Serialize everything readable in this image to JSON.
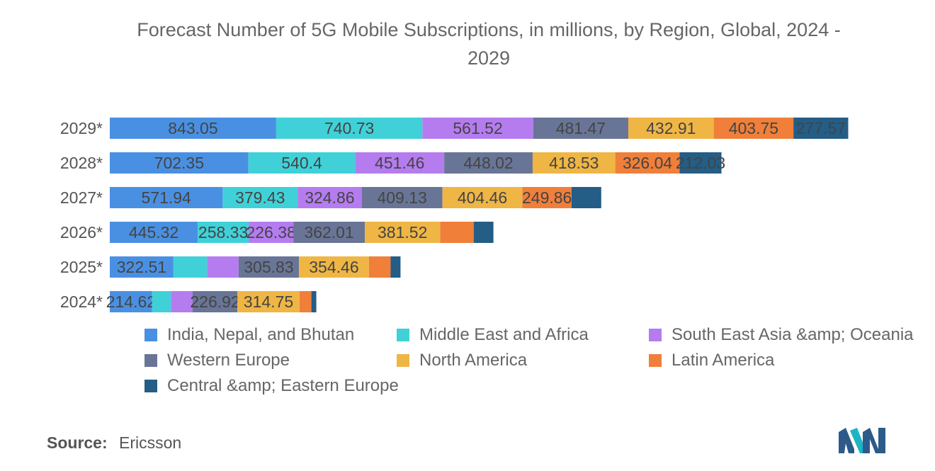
{
  "chart_data": {
    "type": "bar",
    "orientation": "horizontal",
    "stacked": true,
    "title": "Forecast Number of 5G Mobile Subscriptions, in millions, by Region, Global, 2024 - 2029",
    "title_lines": [
      "Forecast Number of 5G Mobile Subscriptions, in millions, by Region, Global, 2024 -",
      "2029"
    ],
    "categories": [
      "2029*",
      "2028*",
      "2027*",
      "2026*",
      "2025*",
      "2024*"
    ],
    "series": [
      {
        "name": "India, Nepal, and Bhutan",
        "color": "#4a90e2",
        "values": [
          843.05,
          702.35,
          571.94,
          445.32,
          322.51,
          214.62
        ]
      },
      {
        "name": "Middle East and Africa",
        "color": "#40d1d8",
        "values": [
          740.73,
          540.4,
          379.43,
          258.33,
          170,
          95
        ]
      },
      {
        "name": "South East Asia &amp; Oceania",
        "color": "#b57cf0",
        "values": [
          561.52,
          451.46,
          324.86,
          226.38,
          160,
          110
        ]
      },
      {
        "name": "Western Europe",
        "color": "#697596",
        "values": [
          481.47,
          448.02,
          409.13,
          362.01,
          305.83,
          226.92
        ]
      },
      {
        "name": "North America",
        "color": "#efb645",
        "values": [
          432.91,
          418.53,
          404.46,
          381.52,
          354.46,
          314.75
        ]
      },
      {
        "name": "Latin America",
        "color": "#f07f3a",
        "values": [
          403.75,
          326.04,
          249.86,
          170,
          110,
          60
        ]
      },
      {
        "name": "Central &amp; Eastern Europe",
        "color": "#245d86",
        "values": [
          277.57,
          212.03,
          150,
          100,
          50,
          25
        ]
      }
    ],
    "data_labels": [
      [
        "843.05",
        "740.73",
        "561.52",
        "481.47",
        "432.91",
        "403.75",
        "277.57"
      ],
      [
        "702.35",
        "540.4",
        "451.46",
        "448.02",
        "418.53",
        "326.04",
        "212.03"
      ],
      [
        "571.94",
        "379.43",
        "324.86",
        "409.13",
        "404.46",
        "249.86",
        ""
      ],
      [
        "445.32",
        "258.33",
        "226.38",
        "362.01",
        "381.52",
        "",
        ""
      ],
      [
        "322.51",
        "",
        "",
        "305.83",
        "354.46",
        "",
        ""
      ],
      [
        "214.62",
        "",
        "",
        "226.92",
        "314.75",
        "",
        ""
      ]
    ],
    "xlim": [
      0,
      3750
    ],
    "grid": false,
    "legend_position": "bottom"
  },
  "source": {
    "label": "Source:",
    "value": "Ericsson"
  },
  "logo_name": "mordor-intelligence-logo"
}
